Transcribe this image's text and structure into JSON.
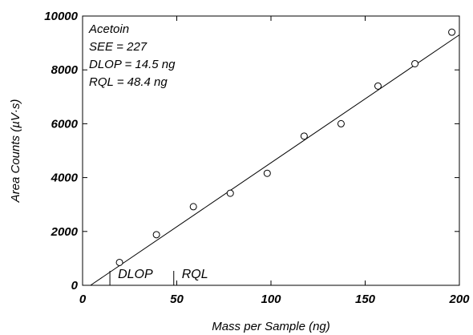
{
  "chart_data": {
    "type": "scatter",
    "title": "",
    "xlabel": "Mass per Sample (ng)",
    "ylabel": "Area Counts (µV·s)",
    "xlim": [
      0,
      200
    ],
    "ylim": [
      0,
      10000
    ],
    "x_ticks": [
      0,
      50,
      100,
      150,
      200
    ],
    "y_ticks": [
      0,
      2000,
      4000,
      6000,
      8000,
      10000
    ],
    "grid": false,
    "series": [
      {
        "x": [
          19.6,
          39.2,
          58.8,
          78.4,
          98.0,
          117.6,
          137.2,
          156.8,
          176.4,
          196.0
        ],
        "y": [
          850,
          1880,
          2920,
          3420,
          4160,
          5540,
          6000,
          7400,
          8230,
          9400
        ],
        "marker": "open-circle",
        "color": "#000000"
      }
    ],
    "fit_line": {
      "x": [
        0,
        200
      ],
      "y": [
        -200,
        9300
      ],
      "color": "#000000"
    },
    "annotations": [
      "Acetoin",
      "SEE = 227",
      "DLOP = 14.5 ng",
      "RQL = 48.4 ng"
    ],
    "markers": [
      {
        "label": "DLOP",
        "x": 14.5
      },
      {
        "label": "RQL",
        "x": 48.4
      }
    ]
  }
}
